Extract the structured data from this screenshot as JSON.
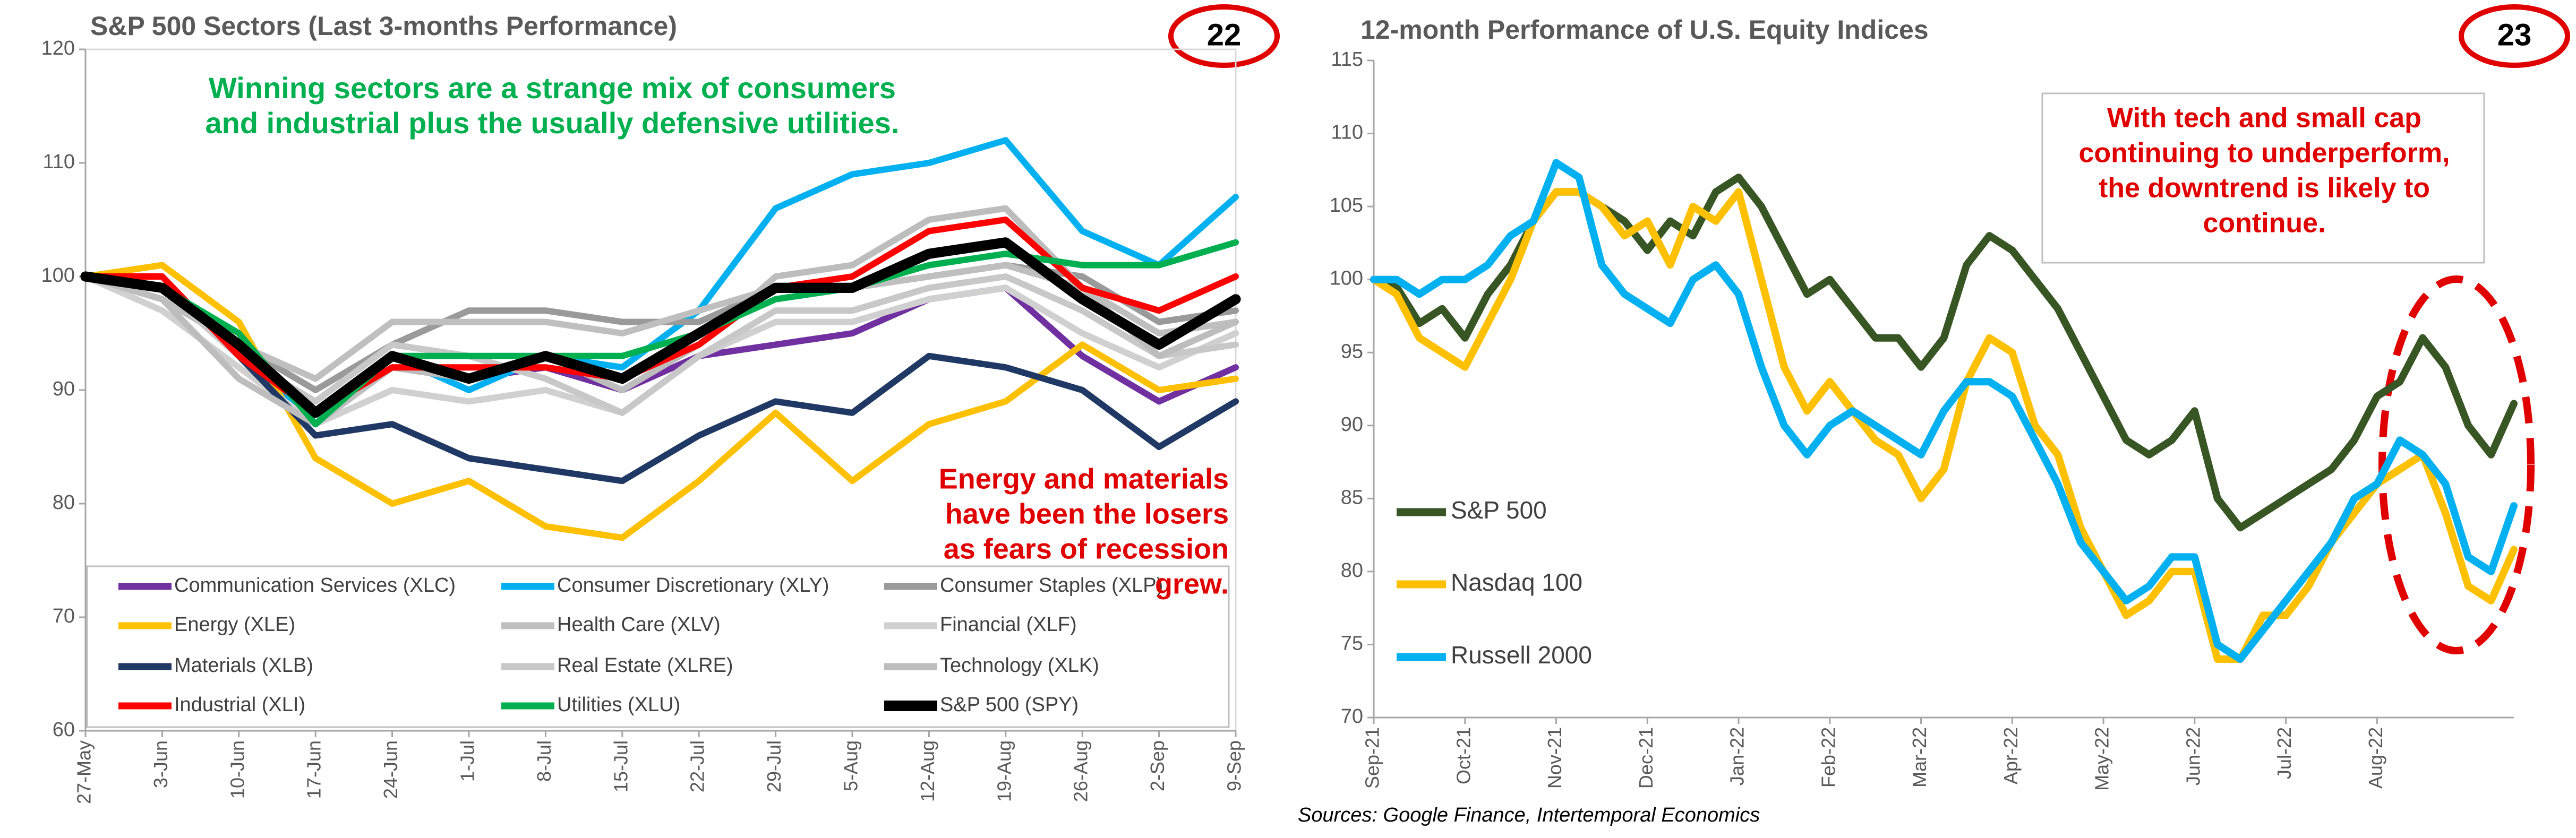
{
  "chart_data": [
    {
      "type": "line",
      "title": "S&P 500 Sectors (Last 3-months Performance)",
      "page_number": "22",
      "categories": [
        "27-May",
        "3-Jun",
        "10-Jun",
        "17-Jun",
        "24-Jun",
        "1-Jul",
        "8-Jul",
        "15-Jul",
        "22-Jul",
        "29-Jul",
        "5-Aug",
        "12-Aug",
        "19-Aug",
        "26-Aug",
        "2-Sep",
        "9-Sep"
      ],
      "ylim": [
        60,
        120
      ],
      "yticks": [
        60,
        70,
        80,
        90,
        100,
        110,
        120
      ],
      "grid": false,
      "legend": "bottom",
      "annotations": [
        {
          "text": [
            "Winning sectors are a strange mix of consumers",
            "and industrial plus the usually defensive utilities."
          ],
          "color": "#00b050"
        },
        {
          "text": [
            "Energy and materials",
            "have been the losers",
            "as fears of recession",
            "grew."
          ],
          "color": "#e00000"
        }
      ],
      "series": [
        {
          "name": "Communication Services (XLC)",
          "color": "#7030a0",
          "values": [
            100,
            99,
            93,
            88,
            92,
            91,
            92,
            90,
            93,
            94,
            95,
            98,
            99,
            93,
            89,
            92
          ]
        },
        {
          "name": "Consumer Discretionary (XLY)",
          "color": "#00b0f0",
          "values": [
            100,
            100,
            93,
            87,
            93,
            90,
            93,
            92,
            97,
            106,
            109,
            110,
            112,
            104,
            101,
            107
          ]
        },
        {
          "name": "Consumer Staples (XLP)",
          "color": "#9a9a9a",
          "values": [
            100,
            98,
            94,
            90,
            94,
            97,
            97,
            96,
            96,
            99,
            99,
            100,
            101,
            100,
            96,
            97
          ]
        },
        {
          "name": "Energy (XLE)",
          "color": "#ffc000",
          "values": [
            100,
            101,
            96,
            84,
            80,
            82,
            78,
            77,
            82,
            88,
            82,
            87,
            89,
            94,
            90,
            91
          ]
        },
        {
          "name": "Health Care (XLV)",
          "color": "#bfbfbf",
          "values": [
            100,
            98,
            94,
            91,
            96,
            96,
            96,
            95,
            97,
            99,
            99,
            100,
            101,
            99,
            95,
            96
          ]
        },
        {
          "name": "Financial (XLF)",
          "color": "#d0d0d0",
          "values": [
            100,
            97,
            92,
            87,
            90,
            89,
            90,
            88,
            93,
            96,
            96,
            98,
            99,
            95,
            92,
            95
          ]
        },
        {
          "name": "Materials (XLB)",
          "color": "#1f3864",
          "values": [
            100,
            99,
            93,
            86,
            87,
            84,
            83,
            82,
            86,
            89,
            88,
            93,
            92,
            90,
            85,
            89
          ]
        },
        {
          "name": "Real Estate (XLRE)",
          "color": "#c8c8c8",
          "values": [
            100,
            99,
            93,
            89,
            94,
            93,
            91,
            88,
            93,
            97,
            97,
            99,
            100,
            97,
            93,
            94
          ]
        },
        {
          "name": "Technology (XLK)",
          "color": "#bdbdbd",
          "values": [
            100,
            98,
            91,
            87,
            92,
            91,
            93,
            90,
            94,
            100,
            101,
            105,
            106,
            99,
            93,
            96
          ]
        },
        {
          "name": "Industrial (XLI)",
          "color": "#ff0000",
          "values": [
            100,
            100,
            93,
            88,
            92,
            92,
            92,
            91,
            94,
            99,
            100,
            104,
            105,
            99,
            97,
            100
          ]
        },
        {
          "name": "Utilities (XLU)",
          "color": "#00b050",
          "values": [
            100,
            99,
            95,
            87,
            93,
            93,
            93,
            93,
            95,
            98,
            99,
            101,
            102,
            101,
            101,
            103
          ]
        },
        {
          "name": "S&P 500 (SPY)",
          "color": "#000000",
          "values": [
            100,
            99,
            94,
            88,
            93,
            91,
            93,
            91,
            95,
            99,
            99,
            102,
            103,
            98,
            94,
            98
          ]
        }
      ]
    },
    {
      "type": "line",
      "title": "12-month Performance of U.S. Equity Indices",
      "page_number": "23",
      "categories": [
        "Sep-21",
        null,
        null,
        null,
        "Oct-21",
        null,
        null,
        null,
        "Nov-21",
        null,
        null,
        null,
        "Dec-21",
        null,
        null,
        null,
        "Jan-22",
        null,
        null,
        null,
        "Feb-22",
        null,
        null,
        null,
        "Mar-22",
        null,
        null,
        null,
        "Apr-22",
        null,
        null,
        null,
        "May-22",
        null,
        null,
        null,
        "Jun-22",
        null,
        null,
        null,
        "Jul-22",
        null,
        null,
        null,
        "Aug-22",
        null,
        null,
        null,
        null,
        null,
        null
      ],
      "ylim": [
        70,
        115
      ],
      "yticks": [
        70,
        75,
        80,
        85,
        90,
        95,
        100,
        105,
        110,
        115
      ],
      "grid": false,
      "legend": "left",
      "annotations": [
        {
          "text": [
            "With tech and small cap",
            "continuing to underperform,",
            "the downtrend is likely to",
            "continue."
          ],
          "color": "#e00000"
        }
      ],
      "series": [
        {
          "name": "S&P 500",
          "color": "#375623",
          "values": [
            100,
            99.5,
            97,
            98,
            96,
            99,
            101,
            104,
            106,
            106,
            105,
            104,
            102,
            104,
            103,
            106,
            107,
            105,
            102,
            99,
            100,
            98,
            96,
            96,
            94,
            96,
            101,
            103,
            102,
            100,
            98,
            95,
            92,
            89,
            88,
            89,
            91,
            85,
            83,
            84,
            85,
            86,
            87,
            89,
            92,
            93,
            96,
            94,
            90,
            88,
            91.5
          ]
        },
        {
          "name": "Nasdaq 100",
          "color": "#ffc000",
          "values": [
            100,
            99,
            96,
            95,
            94,
            97,
            100,
            104,
            106,
            106,
            105,
            103,
            104,
            101,
            105,
            104,
            106,
            100,
            94,
            91,
            93,
            91,
            89,
            88,
            85,
            87,
            93,
            96,
            95,
            90,
            88,
            83,
            80,
            77,
            78,
            80,
            80,
            74,
            74,
            77,
            77,
            79,
            82,
            84,
            86,
            87,
            88,
            84,
            79,
            78,
            81.5
          ]
        },
        {
          "name": "Russell 2000",
          "color": "#00b0f0",
          "values": [
            100,
            100,
            99,
            100,
            100,
            101,
            103,
            104,
            108,
            107,
            101,
            99,
            98,
            97,
            100,
            101,
            99,
            94,
            90,
            88,
            90,
            91,
            90,
            89,
            88,
            91,
            93,
            93,
            92,
            89,
            86,
            82,
            80,
            78,
            79,
            81,
            81,
            75,
            74,
            76,
            78,
            80,
            82,
            85,
            86,
            89,
            88,
            86,
            81,
            80,
            84.5
          ]
        }
      ]
    }
  ],
  "sources": "Sources: Google Finance, Intertemporal Economics"
}
